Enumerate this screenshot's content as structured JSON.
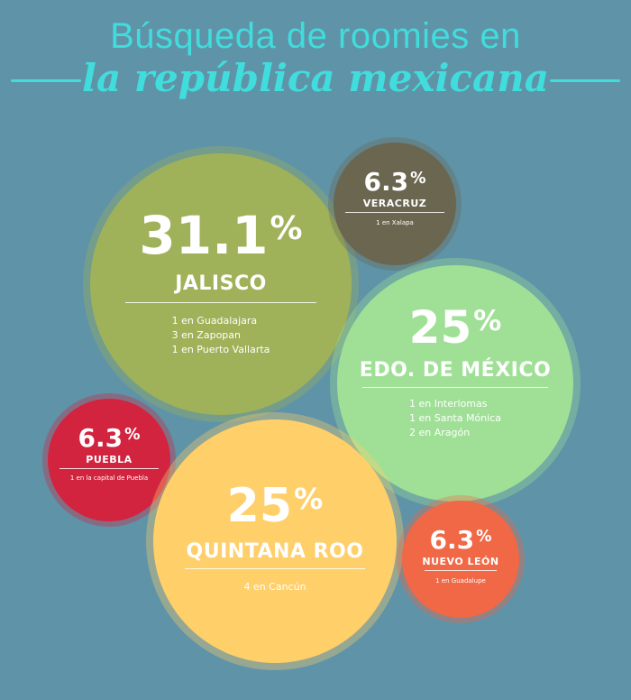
{
  "header": {
    "line1": "Búsqueda de roomies en",
    "line2": "la república mexicana"
  },
  "colors": {
    "background": "#5f93a8",
    "title": "#41dcdc",
    "jalisco": "#9fb25a",
    "veracruz": "#6a6650",
    "edomex": "#9fe096",
    "puebla": "#d2243f",
    "quintana_roo": "#ffcf6a",
    "nuevo_leon": "#f06845"
  },
  "chart_data": {
    "type": "bubble",
    "regions": [
      {
        "key": "jalisco",
        "name": "JALISCO",
        "percent": "31.1",
        "sym": "%",
        "value": 31.1,
        "details": [
          "1  en Guadalajara",
          "3  en Zapopan",
          "1  en Puerto Vallarta"
        ]
      },
      {
        "key": "veracruz",
        "name": "VERACRUZ",
        "percent": "6.3",
        "sym": "%",
        "value": 6.3,
        "details": [
          "1 en Xalapa"
        ]
      },
      {
        "key": "edomex",
        "name": "EDO. DE MÉXICO",
        "percent": "25",
        "sym": "%",
        "value": 25,
        "details": [
          "1  en Interlomas",
          "1  en Santa Mónica",
          "2  en Aragón"
        ]
      },
      {
        "key": "puebla",
        "name": "PUEBLA",
        "percent": "6.3",
        "sym": "%",
        "value": 6.3,
        "details": [
          "1 en la capital de Puebla"
        ]
      },
      {
        "key": "quintana_roo",
        "name": "QUINTANA ROO",
        "percent": "25",
        "sym": "%",
        "value": 25,
        "details": [
          "4 en Cancún"
        ]
      },
      {
        "key": "nuevo_leon",
        "name": "NUEVO LEÓN",
        "percent": "6.3",
        "sym": "%",
        "value": 6.3,
        "details": [
          "1 en Guadalupe"
        ]
      }
    ]
  }
}
